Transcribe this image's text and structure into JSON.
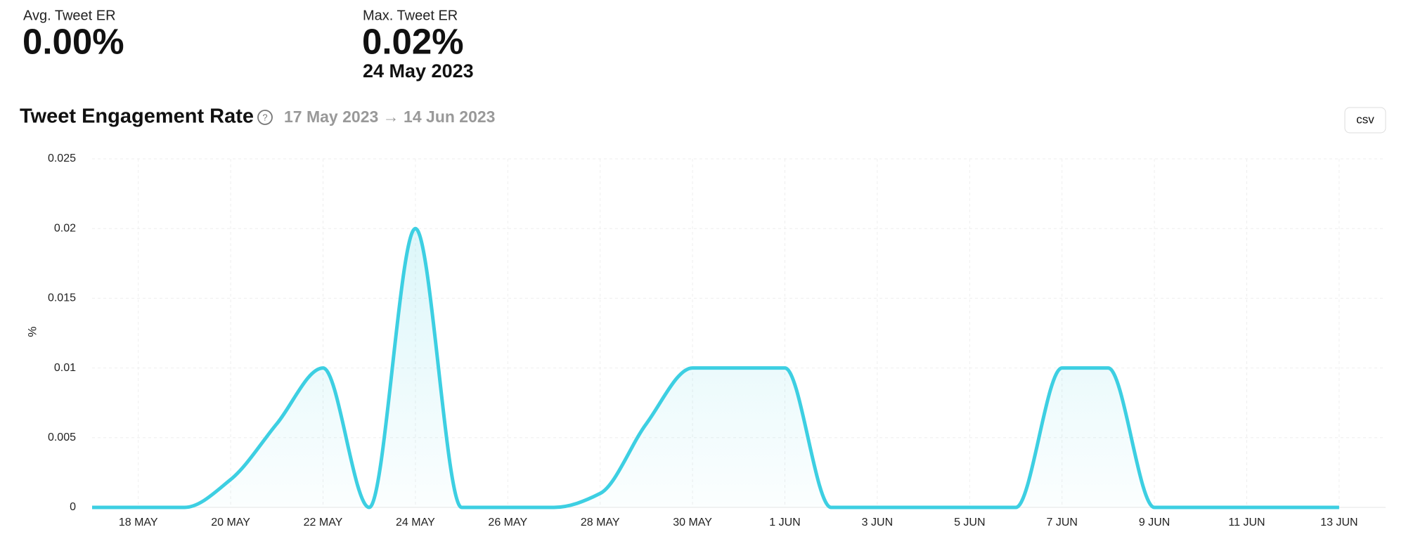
{
  "header": {
    "stats": [
      {
        "label": "Avg. Tweet ER",
        "value": "0.00%"
      },
      {
        "label": "Max. Tweet ER",
        "value": "0.02%",
        "date": "24 May 2023"
      }
    ]
  },
  "chart_data": {
    "type": "line",
    "title": "Tweet Engagement Rate",
    "subtitle": "17 May 2023 → 14 Jun 2023",
    "y_label": "%",
    "button": "csv",
    "categories": [
      null,
      "18 MAY",
      null,
      "20 MAY",
      null,
      "22 MAY",
      null,
      "24 MAY",
      null,
      "26 MAY",
      null,
      "28 MAY",
      null,
      "30 MAY",
      null,
      "1 JUN",
      null,
      "3 JUN",
      null,
      "5 JUN",
      null,
      "7 JUN",
      null,
      "9 JUN",
      null,
      "11 JUN",
      null,
      "13 JUN"
    ],
    "values": [
      0,
      0,
      0,
      0.002,
      0.006,
      0.01,
      0,
      0.02,
      0,
      0,
      0,
      0.001,
      0.006,
      0.01,
      0.01,
      0.01,
      0,
      0,
      0,
      0,
      0,
      0.01,
      0.01,
      0,
      0,
      0,
      0,
      0
    ],
    "color": "#3dcfe2",
    "ylim": [
      0,
      0.025
    ],
    "yticks": [
      0,
      0.005,
      0.01,
      0.015,
      0.02,
      0.025
    ],
    "grid": true
  }
}
